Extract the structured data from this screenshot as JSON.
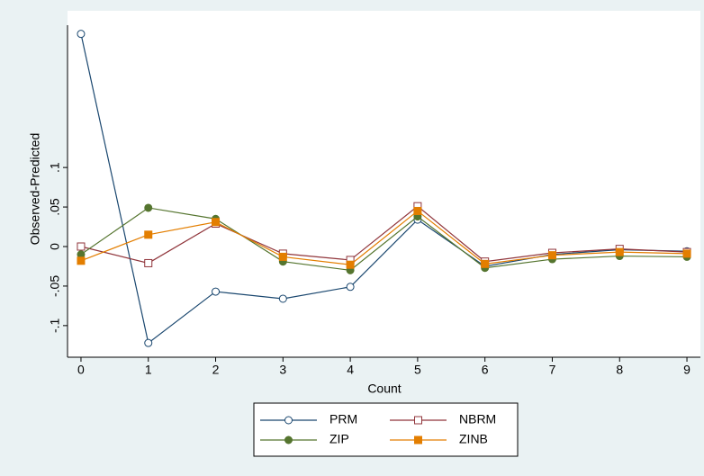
{
  "chart_data": {
    "type": "line",
    "xlabel": "Count",
    "ylabel": "Observed-Predicted",
    "x": [
      0,
      1,
      2,
      3,
      4,
      5,
      6,
      7,
      8,
      9
    ],
    "xlim": [
      -0.2,
      9.2
    ],
    "xticks": [
      0,
      1,
      2,
      3,
      4,
      5,
      6,
      7,
      8,
      9
    ],
    "ylim": [
      -0.14,
      0.28
    ],
    "yticks": [
      {
        "value": -0.1,
        "label": "-.1"
      },
      {
        "value": -0.05,
        "label": "-.05"
      },
      0,
      {
        "value": 0.05,
        "label": ".05"
      },
      {
        "value": 0.1,
        "label": ".1"
      }
    ],
    "grid": false,
    "legend": "bottom",
    "series": [
      {
        "name": "PRM",
        "color": "#1a476f",
        "marker": "circle",
        "filled": false,
        "values": [
          0.269,
          -0.122,
          -0.057,
          -0.066,
          -0.051,
          0.034,
          -0.025,
          -0.01,
          -0.004,
          -0.006
        ]
      },
      {
        "name": "NBRM",
        "color": "#90353b",
        "marker": "square",
        "filled": false,
        "values": [
          0.0,
          -0.021,
          0.029,
          -0.009,
          -0.017,
          0.051,
          -0.019,
          -0.008,
          -0.003,
          -0.007
        ]
      },
      {
        "name": "ZIP",
        "color": "#55752f",
        "marker": "circle",
        "filled": true,
        "values": [
          -0.01,
          0.049,
          0.035,
          -0.019,
          -0.03,
          0.038,
          -0.027,
          -0.016,
          -0.012,
          -0.013
        ]
      },
      {
        "name": "ZINB",
        "color": "#e37e00",
        "marker": "square",
        "filled": true,
        "values": [
          -0.018,
          0.015,
          0.031,
          -0.013,
          -0.023,
          0.045,
          -0.022,
          -0.011,
          -0.007,
          -0.009
        ]
      }
    ]
  }
}
